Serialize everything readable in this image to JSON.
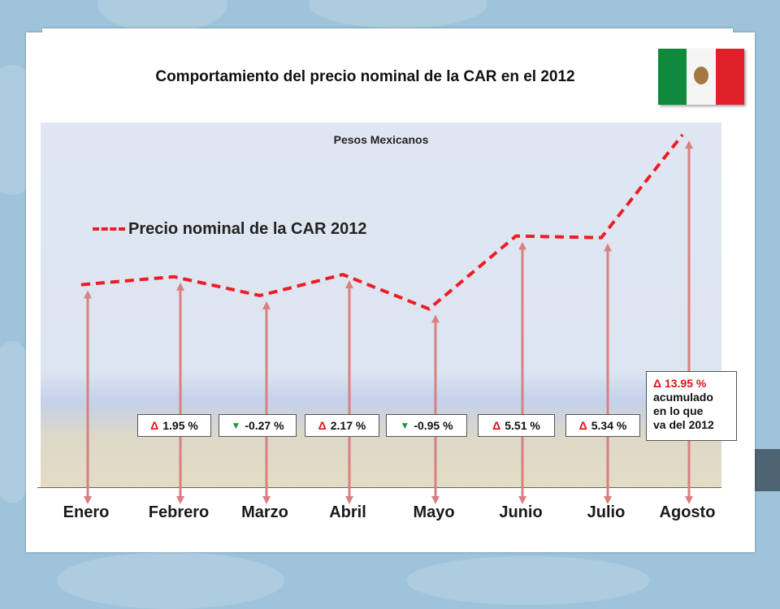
{
  "title": "Comportamiento del precio nominal de la CAR en el 2012",
  "flag": "mexico-flag",
  "colors": {
    "series": "#ee1c24",
    "arrows": "#d98080",
    "background": "#9ec3da",
    "up": "#e8101a",
    "down": "#1a9a3a"
  },
  "chart_data": {
    "type": "line",
    "title": "Pesos Mexicanos",
    "categories": [
      "Enero",
      "Febrero",
      "Marzo",
      "Abril",
      "Mayo",
      "Junio",
      "Julio",
      "Agosto"
    ],
    "series": [
      {
        "name": "Precio nominal de la CAR 2012",
        "values": [
          100.0,
          101.95,
          97.3,
          102.5,
          94.0,
          112.0,
          111.6,
          137.0
        ],
        "style": "dashed"
      }
    ],
    "ylim": [
      50,
      140
    ],
    "changes": [
      {
        "symbol": "Δ",
        "direction": "up",
        "text": "1.95 %"
      },
      {
        "symbol": "▼",
        "direction": "down",
        "text": "-0.27 %"
      },
      {
        "symbol": "Δ",
        "direction": "up",
        "text": "2.17 %"
      },
      {
        "symbol": "▼",
        "direction": "down",
        "text": "-0.95 %"
      },
      {
        "symbol": "Δ",
        "direction": "up",
        "text": "5.51 %"
      },
      {
        "symbol": "Δ",
        "direction": "up",
        "text": "5.34 %"
      }
    ],
    "cumulative": {
      "symbol": "Δ",
      "value": "13.95 %",
      "lines": [
        "acumulado",
        "en lo que",
        "va del 2012"
      ]
    },
    "legend": "upper-left",
    "grid": false
  }
}
